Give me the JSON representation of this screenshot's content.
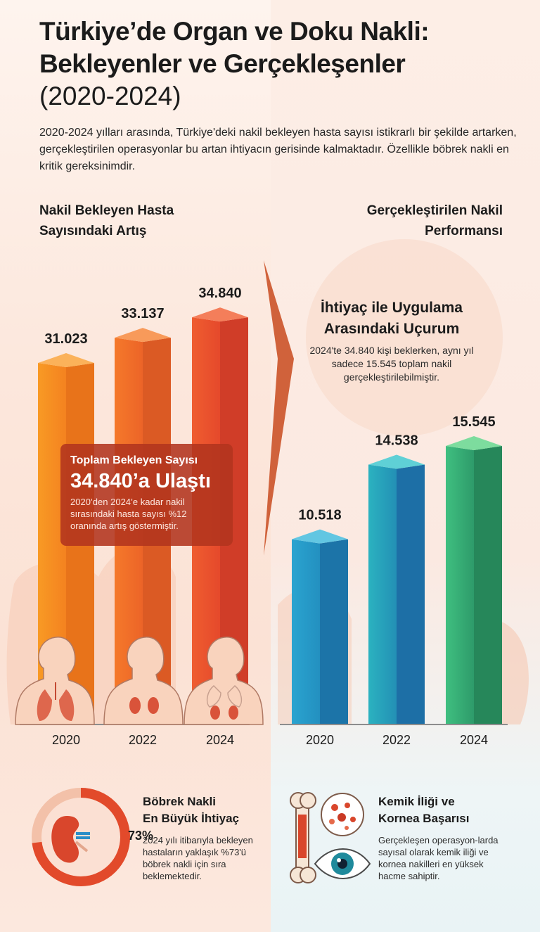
{
  "title_line1": "Türkiye’de Organ ve Doku Nakli:",
  "title_line2": "Bekleyenler ve Gerçekleşenler",
  "title_line3": "(2020-2024)",
  "intro": "2020-2024 yılları arasında, Türkiye'deki nakil bekleyen hasta sayısı istikrarlı bir şekilde artarken, gerçekleştirilen operasyonlar bu artan ihtiyacın gerisinde kalmaktadır. Özellikle böbrek nakli en kritik gereksinimdir.",
  "left_section_title": "Nakil Bekleyen Hasta Sayısındaki Artış",
  "right_section_title": "Gerçekleştirilen Nakil Performansı",
  "callout": {
    "heading": "Toplam Bekleyen Sayısı",
    "big": "34.840’a Ulaştı",
    "text": "2020’den 2024’e kadar nakil sırasındaki hasta sayısı %12 oranında artış göstermiştir."
  },
  "gap": {
    "heading": "İhtiyaç ile Uygulama Arasındaki Uçurum",
    "text": "2024'te 34.840 kişi beklerken, aynı yıl sadece 15.545 toplam nakil gerçekleştirilebilmiştir."
  },
  "kidney_card": {
    "heading_line1": "Böbrek Nakli",
    "heading_line2": "En Büyük İhtiyaç",
    "percent": "73%",
    "percent_value": 73,
    "text": "2024 yılı itibarıyla bekleyen hastaların yaklaşık %73'ü böbrek nakli için sıra beklemektedir."
  },
  "marrow_card": {
    "heading_line1": "Kemik İliği ve",
    "heading_line2": "Kornea Başarısı",
    "text": "Gerçekleşen operasyon-larda sayısal olarak kemik iliği ve kornea nakilleri en yüksek hacme sahiptir."
  },
  "icons": [
    "lungs-torso-icon",
    "kidney-torso-icon",
    "lungs-kidney-torso-icon",
    "kidney-icon",
    "bone-icon",
    "marrow-cells-icon",
    "eye-icon"
  ],
  "colors": {
    "waiting_bar_start": "#f7941d",
    "waiting_bar_end": "#e8502d",
    "performed_bar_start": "#27a9c9",
    "performed_bar_end": "#3dbb7e",
    "callout": "#b2341e",
    "ring": "#e24a2b"
  },
  "chart_data": [
    {
      "type": "bar",
      "title": "Nakil Bekleyen Hasta Sayısındaki Artış",
      "categories": [
        "2020",
        "2022",
        "2024"
      ],
      "values": [
        31023,
        33137,
        34840
      ],
      "labels": [
        "31.023",
        "33.137",
        "34.840"
      ],
      "ylim": [
        0,
        40000
      ],
      "grid": false
    },
    {
      "type": "bar",
      "title": "Gerçekleştirilen Nakil Performansı",
      "categories": [
        "2020",
        "2022",
        "2024"
      ],
      "values": [
        10518,
        14538,
        15545
      ],
      "labels": [
        "10.518",
        "14.538",
        "15.545"
      ],
      "ylim": [
        0,
        40000
      ],
      "grid": false
    }
  ]
}
